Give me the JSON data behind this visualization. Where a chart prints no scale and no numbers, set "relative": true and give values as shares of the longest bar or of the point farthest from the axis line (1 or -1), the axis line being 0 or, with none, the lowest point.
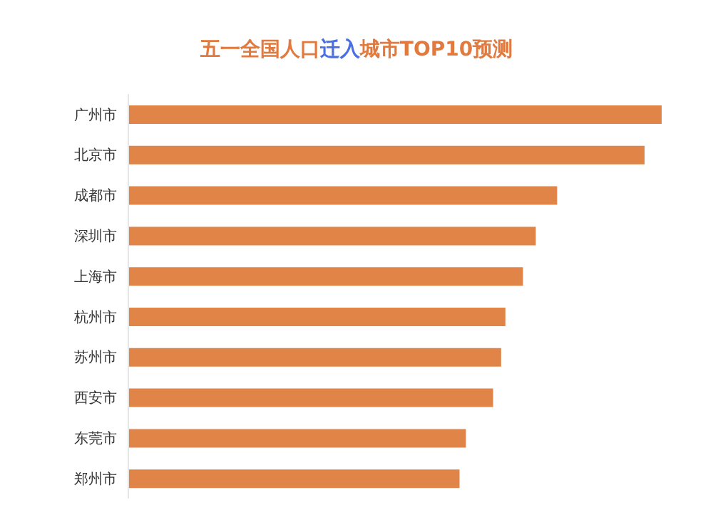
{
  "chart_data": {
    "type": "bar",
    "orientation": "horizontal",
    "relative": true,
    "title": "五一全国人口迁入城市TOP10预测",
    "categories": [
      "广州市",
      "北京市",
      "成都市",
      "深圳市",
      "上海市",
      "杭州市",
      "苏州市",
      "西安市",
      "东莞市",
      "郑州市"
    ],
    "values": [
      1,
      0.968,
      0.804,
      0.764,
      0.74,
      0.707,
      0.699,
      0.684,
      0.633,
      0.621
    ],
    "color": "#e08447",
    "grid": false,
    "legend": false
  }
}
